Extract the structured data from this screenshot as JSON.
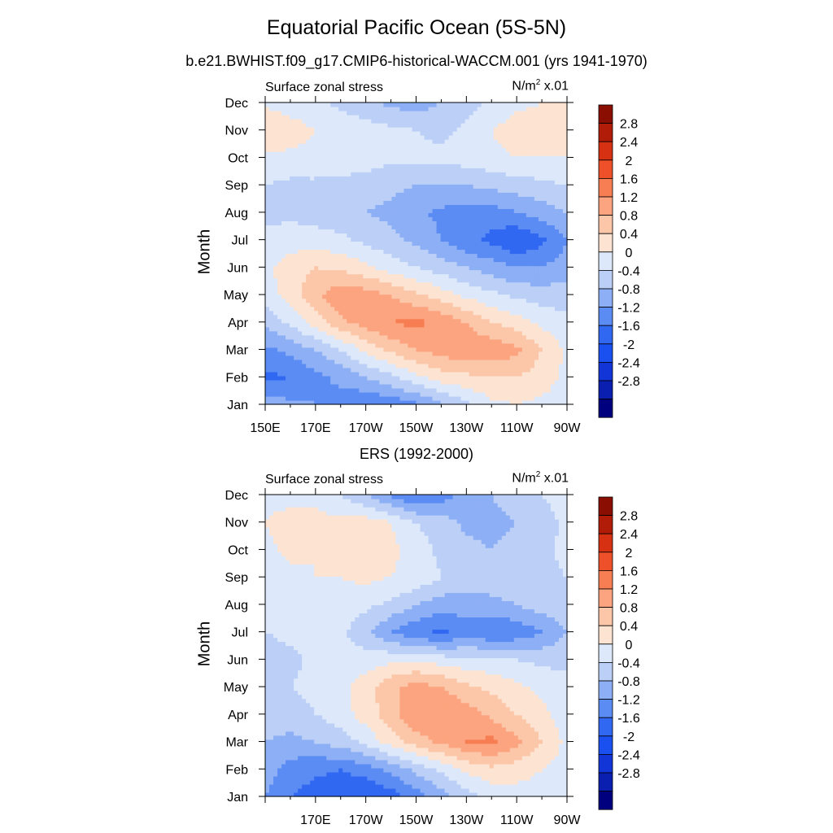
{
  "title": "Equatorial Pacific Ocean (5S-5N)",
  "subtitle": "b.e21.BWHIST.f09_g17.CMIP6-historical-WACCM.001 (yrs 1941-1970)",
  "panels": [
    {
      "name": "model",
      "panel_title": "",
      "variable": "Surface zonal stress",
      "units_base": "N/m",
      "units_sup": "2",
      "units_scale": " x.01",
      "ylabel": "Month",
      "show_first_xtick": true
    },
    {
      "name": "obs",
      "panel_title": "ERS (1992-2000)",
      "variable": "Surface zonal stress",
      "units_base": "N/m",
      "units_sup": "2",
      "units_scale": " x.01",
      "ylabel": "Month",
      "show_first_xtick": false
    }
  ],
  "chart_data": [
    {
      "type": "heatmap",
      "title": "Equatorial Pacific Ocean (5S-5N)",
      "subtitle": "b.e21.BWHIST.f09_g17.CMIP6-historical-WACCM.001 (yrs 1941-1970)",
      "variable": "Surface zonal stress",
      "units": "N/m^2 x.01",
      "xlabel": "",
      "ylabel": "Month",
      "x_ticks": [
        "150E",
        "170E",
        "170W",
        "150W",
        "130W",
        "110W",
        "90W"
      ],
      "y_ticks": [
        "Jan",
        "Feb",
        "Mar",
        "Apr",
        "May",
        "Jun",
        "Jul",
        "Aug",
        "Sep",
        "Oct",
        "Nov",
        "Dec"
      ],
      "levels": [
        -2.8,
        -2.4,
        -2,
        -1.6,
        -1.2,
        -0.8,
        -0.4,
        0,
        0.4,
        0.8,
        1.2,
        1.6,
        2,
        2.4,
        2.8
      ],
      "x_values": [
        150,
        160,
        170,
        180,
        190,
        200,
        210,
        220,
        230,
        240,
        250,
        260,
        270
      ],
      "y_values": [
        "Jan",
        "Feb",
        "Mar",
        "Apr",
        "May",
        "Jun",
        "Jul",
        "Aug",
        "Sep",
        "Oct",
        "Nov",
        "Dec"
      ],
      "values": [
        [
          -0.6,
          -0.7,
          -0.8,
          -1.0,
          -1.2,
          -1.1,
          -0.9,
          -0.5,
          -0.1,
          0.3,
          0.4,
          0.3,
          0.2
        ],
        [
          -1.3,
          -1.2,
          -0.9,
          -0.7,
          -0.4,
          -0.1,
          0.3,
          0.6,
          0.7,
          0.8,
          0.8,
          0.6,
          0.3
        ],
        [
          -0.9,
          -0.7,
          -0.4,
          0.0,
          0.5,
          0.9,
          1.2,
          1.4,
          1.5,
          1.5,
          1.3,
          0.8,
          0.3
        ],
        [
          -0.3,
          0.1,
          0.6,
          1.1,
          1.4,
          1.6,
          1.7,
          1.5,
          1.2,
          0.8,
          0.6,
          0.3,
          0.1
        ],
        [
          0.2,
          0.6,
          1.1,
          1.5,
          1.4,
          1.2,
          0.9,
          0.6,
          0.3,
          0.1,
          -0.1,
          -0.2,
          -0.2
        ],
        [
          0.3,
          0.6,
          0.8,
          0.7,
          0.5,
          0.2,
          0.0,
          -0.2,
          -0.4,
          -0.6,
          -0.8,
          -0.8,
          -0.6
        ],
        [
          0.1,
          0.2,
          0.2,
          0.1,
          -0.1,
          -0.3,
          -0.5,
          -0.8,
          -1.1,
          -1.3,
          -1.6,
          -1.3,
          -0.8
        ],
        [
          -0.1,
          -0.1,
          -0.2,
          -0.3,
          -0.4,
          -0.5,
          -0.7,
          -0.9,
          -1.0,
          -1.0,
          -0.8,
          -0.6,
          -0.4
        ],
        [
          0.0,
          -0.1,
          -0.1,
          -0.1,
          -0.2,
          -0.3,
          -0.4,
          -0.4,
          -0.4,
          -0.3,
          -0.2,
          -0.1,
          0.0
        ],
        [
          0.3,
          0.3,
          0.3,
          0.2,
          0.2,
          0.1,
          0.1,
          0.1,
          0.2,
          0.3,
          0.4,
          0.4,
          0.4
        ],
        [
          0.8,
          0.6,
          0.4,
          0.3,
          0.2,
          0.1,
          0.0,
          -0.1,
          0.1,
          0.4,
          0.6,
          0.6,
          0.5
        ],
        [
          0.3,
          0.2,
          0.1,
          -0.1,
          -0.3,
          -0.5,
          -0.6,
          -0.4,
          -0.2,
          0.1,
          0.3,
          0.4,
          0.4
        ]
      ]
    },
    {
      "type": "heatmap",
      "title": "ERS (1992-2000)",
      "variable": "Surface zonal stress",
      "units": "N/m^2 x.01",
      "xlabel": "",
      "ylabel": "Month",
      "x_ticks": [
        "",
        "170E",
        "170W",
        "150W",
        "130W",
        "110W",
        "90W"
      ],
      "y_ticks": [
        "Jan",
        "Feb",
        "Mar",
        "Apr",
        "May",
        "Jun",
        "Jul",
        "Aug",
        "Sep",
        "Oct",
        "Nov",
        "Dec"
      ],
      "levels": [
        -2.8,
        -2.4,
        -2,
        -1.6,
        -1.2,
        -0.8,
        -0.4,
        0,
        0.4,
        0.8,
        1.2,
        1.6,
        2,
        2.4,
        2.8
      ],
      "x_values": [
        150,
        160,
        170,
        180,
        190,
        200,
        210,
        220,
        230,
        240,
        250,
        260,
        270
      ],
      "y_values": [
        "Jan",
        "Feb",
        "Mar",
        "Apr",
        "May",
        "Jun",
        "Jul",
        "Aug",
        "Sep",
        "Oct",
        "Nov",
        "Dec"
      ],
      "values": [
        [
          -0.8,
          -1.2,
          -1.4,
          -1.5,
          -1.6,
          -1.4,
          -1.0,
          -0.6,
          -0.2,
          0.1,
          0.2,
          0.2,
          0.1
        ],
        [
          -0.6,
          -1.0,
          -1.1,
          -1.2,
          -1.0,
          -0.7,
          -0.3,
          0.1,
          0.5,
          0.7,
          0.6,
          0.4,
          0.2
        ],
        [
          -0.4,
          -0.5,
          -0.4,
          -0.2,
          0.1,
          0.6,
          1.0,
          1.3,
          1.6,
          1.7,
          1.3,
          0.8,
          0.3
        ],
        [
          -0.2,
          -0.2,
          0.0,
          0.2,
          0.6,
          1.0,
          1.6,
          1.6,
          1.4,
          1.1,
          0.8,
          0.5,
          0.2
        ],
        [
          -0.1,
          0.0,
          0.1,
          0.3,
          0.6,
          1.1,
          1.4,
          1.2,
          0.9,
          0.7,
          0.5,
          0.3,
          0.1
        ],
        [
          -0.2,
          -0.1,
          0.1,
          0.2,
          0.2,
          0.3,
          0.3,
          0.2,
          0.1,
          0.1,
          0.0,
          -0.1,
          -0.1
        ],
        [
          0.0,
          0.1,
          0.1,
          0.1,
          -0.3,
          -0.8,
          -1.1,
          -1.3,
          -1.0,
          -1.2,
          -1.1,
          -0.8,
          -0.4
        ],
        [
          0.1,
          0.2,
          0.2,
          0.2,
          0.1,
          -0.1,
          -0.4,
          -0.6,
          -0.6,
          -0.5,
          -0.4,
          -0.2,
          -0.1
        ],
        [
          0.2,
          0.3,
          0.4,
          0.4,
          0.5,
          0.4,
          0.3,
          0.0,
          -0.2,
          -0.2,
          -0.1,
          -0.1,
          0.0
        ],
        [
          0.3,
          0.5,
          0.4,
          0.6,
          0.6,
          0.5,
          0.2,
          -0.1,
          -0.3,
          -0.4,
          -0.3,
          -0.1,
          0.1
        ],
        [
          0.4,
          0.6,
          0.6,
          0.5,
          0.6,
          0.4,
          0.0,
          -0.2,
          -0.5,
          -0.5,
          -0.4,
          -0.2,
          0.1
        ],
        [
          0.3,
          0.2,
          0.2,
          0.0,
          -0.4,
          -0.9,
          -1.2,
          -1.0,
          -0.6,
          -0.4,
          -0.2,
          0.0,
          0.2
        ]
      ]
    }
  ],
  "colorbar": {
    "labels": [
      "2.8",
      "2.4",
      "2",
      "1.6",
      "1.2",
      "0.8",
      "0.4",
      "0",
      "-0.4",
      "-0.8",
      "-1.2",
      "-1.6",
      "-2",
      "-2.4",
      "-2.8"
    ],
    "colors": [
      "#00007f",
      "#0a1fb0",
      "#1235d8",
      "#1a4ff0",
      "#3168f2",
      "#5b8cf4",
      "#8daff5",
      "#bcd0f7",
      "#dde9fa",
      "#fde4d2",
      "#fcc6a9",
      "#fba47f",
      "#f77d52",
      "#ee5129",
      "#d63112",
      "#b01c08",
      "#8a0e02"
    ]
  }
}
